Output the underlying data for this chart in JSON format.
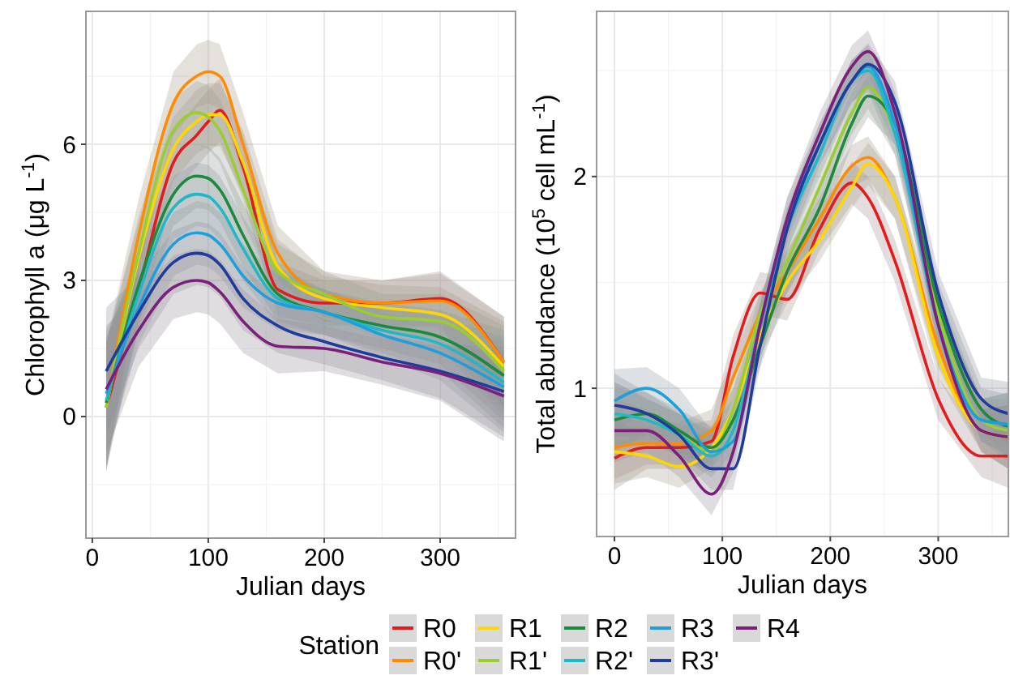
{
  "chart_data": [
    {
      "type": "line",
      "xlabel": "Julian days",
      "ylabel": "Chlorophyll a (μg L$^{-1}$)",
      "legend_title": "Station",
      "legend": "bottom",
      "grid": true,
      "xlim": [
        -5.5,
        365
      ],
      "ylim": [
        -2.68,
        8.93
      ],
      "xticks": [
        0,
        100,
        200,
        300
      ],
      "yticks": [
        0,
        3,
        6
      ],
      "x": [
        12,
        40,
        70,
        90,
        100,
        110,
        130,
        160,
        200,
        250,
        300,
        355
      ],
      "series": [
        {
          "name": "R0",
          "color": "#e41a1c",
          "values": [
            0.2,
            2.8,
            5.6,
            6.2,
            6.5,
            6.75,
            5.5,
            2.8,
            2.5,
            2.5,
            2.6,
            1.2
          ],
          "lower": [
            -1.2,
            2.0,
            4.9,
            5.5,
            5.8,
            6.05,
            4.8,
            2.2,
            2.0,
            2.0,
            2.0,
            0.2
          ],
          "upper": [
            1.6,
            3.6,
            6.3,
            6.9,
            7.2,
            7.45,
            6.2,
            3.4,
            3.0,
            3.0,
            3.2,
            2.2
          ]
        },
        {
          "name": "R0'",
          "color": "#ff8c00",
          "values": [
            0.2,
            4.0,
            6.9,
            7.5,
            7.6,
            7.5,
            6.0,
            3.6,
            2.7,
            2.5,
            2.55,
            1.2
          ],
          "lower": [
            -1.2,
            3.2,
            6.2,
            6.8,
            6.9,
            6.8,
            5.3,
            3.0,
            2.2,
            2.0,
            1.95,
            0.2
          ],
          "upper": [
            1.6,
            4.8,
            7.6,
            8.2,
            8.3,
            8.2,
            6.7,
            4.2,
            3.2,
            3.0,
            3.15,
            2.2
          ]
        },
        {
          "name": "R1",
          "color": "#ffd700",
          "values": [
            0.2,
            3.5,
            5.9,
            6.5,
            6.65,
            6.65,
            5.6,
            3.3,
            2.6,
            2.4,
            2.25,
            1.1
          ],
          "lower": [
            -1.2,
            2.7,
            5.2,
            5.8,
            5.95,
            5.95,
            4.9,
            2.7,
            2.1,
            1.9,
            1.65,
            0.1
          ],
          "upper": [
            1.6,
            4.3,
            6.6,
            7.2,
            7.35,
            7.35,
            6.3,
            3.9,
            3.1,
            2.9,
            2.85,
            2.1
          ]
        },
        {
          "name": "R1'",
          "color": "#9acd32",
          "values": [
            0.2,
            3.6,
            6.3,
            6.7,
            6.6,
            6.3,
            5.0,
            3.2,
            2.7,
            2.2,
            2.1,
            1.0
          ],
          "lower": [
            -1.2,
            2.8,
            5.6,
            6.0,
            5.9,
            5.6,
            4.3,
            2.6,
            2.2,
            1.7,
            1.5,
            0.0
          ],
          "upper": [
            1.6,
            4.4,
            7.0,
            7.4,
            7.3,
            7.0,
            5.7,
            3.8,
            3.2,
            2.7,
            2.7,
            2.0
          ]
        },
        {
          "name": "R2",
          "color": "#1b8a3c",
          "values": [
            0.3,
            2.9,
            4.9,
            5.3,
            5.25,
            5.0,
            4.0,
            2.7,
            2.3,
            2.0,
            1.75,
            0.9
          ],
          "lower": [
            -1.1,
            2.1,
            4.2,
            4.6,
            4.55,
            4.3,
            3.3,
            2.1,
            1.8,
            1.5,
            1.15,
            -0.1
          ],
          "upper": [
            1.7,
            3.7,
            5.6,
            6.0,
            5.95,
            5.7,
            4.7,
            3.3,
            2.8,
            2.5,
            2.35,
            1.9
          ]
        },
        {
          "name": "R2'",
          "color": "#20b8c8",
          "values": [
            0.35,
            2.7,
            4.6,
            4.9,
            4.85,
            4.6,
            3.7,
            2.6,
            2.3,
            1.9,
            1.6,
            0.75
          ],
          "lower": [
            -1.05,
            1.9,
            3.9,
            4.2,
            4.15,
            3.9,
            3.0,
            2.0,
            1.8,
            1.4,
            1.0,
            -0.25
          ],
          "upper": [
            1.75,
            3.5,
            5.3,
            5.6,
            5.55,
            5.3,
            4.4,
            3.2,
            2.8,
            2.4,
            2.2,
            1.75
          ]
        },
        {
          "name": "R3",
          "color": "#1e9fdc",
          "values": [
            0.5,
            2.4,
            3.8,
            4.05,
            4.0,
            3.8,
            3.1,
            2.5,
            2.3,
            1.8,
            1.4,
            0.65
          ],
          "lower": [
            -0.9,
            1.6,
            3.1,
            3.35,
            3.3,
            3.1,
            2.4,
            1.9,
            1.8,
            1.3,
            0.8,
            -0.35
          ],
          "upper": [
            1.9,
            3.2,
            4.5,
            4.75,
            4.7,
            4.5,
            3.8,
            3.1,
            2.8,
            2.3,
            2.0,
            1.65
          ]
        },
        {
          "name": "R3'",
          "color": "#1f3c9c",
          "values": [
            1.0,
            2.3,
            3.4,
            3.6,
            3.55,
            3.35,
            2.6,
            2.0,
            1.65,
            1.3,
            1.0,
            0.55
          ],
          "lower": [
            -0.4,
            1.5,
            2.7,
            2.9,
            2.85,
            2.65,
            1.9,
            1.4,
            1.15,
            0.8,
            0.4,
            -0.45
          ],
          "upper": [
            2.4,
            3.1,
            4.1,
            4.3,
            4.25,
            4.05,
            3.3,
            2.6,
            2.15,
            1.8,
            1.6,
            1.55
          ]
        },
        {
          "name": "R4",
          "color": "#7b1f7b",
          "values": [
            0.6,
            1.9,
            2.85,
            3.0,
            2.95,
            2.75,
            2.1,
            1.55,
            1.5,
            1.2,
            0.95,
            0.45
          ],
          "lower": [
            -0.8,
            1.1,
            2.15,
            2.3,
            2.25,
            2.05,
            1.4,
            0.95,
            1.0,
            0.7,
            0.35,
            -0.55
          ],
          "upper": [
            2.0,
            2.7,
            3.55,
            3.7,
            3.65,
            3.45,
            2.8,
            2.15,
            2.0,
            1.7,
            1.55,
            1.45
          ]
        }
      ]
    },
    {
      "type": "line",
      "xlabel": "Julian days",
      "ylabel": "Total abundance (10$^{5}$ cell mL$^{-1}$)",
      "grid": true,
      "legend": "bottom",
      "xlim": [
        -16.5,
        365
      ],
      "ylim": [
        0.3,
        2.78
      ],
      "xticks": [
        0,
        100,
        200,
        300
      ],
      "yticks": [
        1,
        2
      ],
      "x": [
        0,
        30,
        60,
        90,
        110,
        135,
        160,
        190,
        220,
        235,
        260,
        300,
        340,
        365
      ],
      "series": [
        {
          "name": "R0",
          "color": "#e41a1c",
          "values": [
            0.67,
            0.72,
            0.72,
            0.75,
            1.15,
            1.45,
            1.42,
            1.75,
            1.97,
            1.9,
            1.6,
            0.95,
            0.68,
            0.68
          ],
          "lower": [
            0.52,
            0.62,
            0.62,
            0.65,
            1.05,
            1.35,
            1.32,
            1.65,
            1.87,
            1.8,
            1.5,
            0.85,
            0.58,
            0.53
          ],
          "upper": [
            0.82,
            0.82,
            0.82,
            0.85,
            1.25,
            1.55,
            1.52,
            1.85,
            2.07,
            2.0,
            1.7,
            1.05,
            0.78,
            0.83
          ]
        },
        {
          "name": "R0'",
          "color": "#ff8c00",
          "values": [
            0.72,
            0.74,
            0.74,
            0.8,
            1.05,
            1.35,
            1.55,
            1.8,
            2.05,
            2.09,
            1.9,
            1.2,
            0.8,
            0.77
          ],
          "lower": [
            0.57,
            0.64,
            0.64,
            0.7,
            0.95,
            1.25,
            1.45,
            1.7,
            1.95,
            1.99,
            1.8,
            1.1,
            0.7,
            0.62
          ],
          "upper": [
            0.87,
            0.84,
            0.84,
            0.9,
            1.15,
            1.45,
            1.65,
            1.9,
            2.15,
            2.19,
            2.0,
            1.3,
            0.9,
            0.92
          ]
        },
        {
          "name": "R1",
          "color": "#ffd700",
          "values": [
            0.7,
            0.68,
            0.63,
            0.72,
            0.9,
            1.25,
            1.5,
            1.7,
            1.95,
            2.06,
            1.9,
            1.15,
            0.8,
            0.77
          ],
          "lower": [
            0.55,
            0.58,
            0.53,
            0.62,
            0.8,
            1.15,
            1.4,
            1.6,
            1.85,
            1.96,
            1.8,
            1.05,
            0.7,
            0.62
          ],
          "upper": [
            0.85,
            0.78,
            0.73,
            0.82,
            1.0,
            1.35,
            1.6,
            1.8,
            2.05,
            2.16,
            2.0,
            1.25,
            0.9,
            0.92
          ]
        },
        {
          "name": "R1'",
          "color": "#9acd32",
          "values": [
            0.88,
            0.85,
            0.78,
            0.7,
            0.9,
            1.35,
            1.6,
            1.95,
            2.3,
            2.42,
            2.2,
            1.35,
            0.85,
            0.8
          ],
          "lower": [
            0.73,
            0.75,
            0.68,
            0.6,
            0.8,
            1.25,
            1.5,
            1.85,
            2.2,
            2.32,
            2.1,
            1.25,
            0.75,
            0.65
          ],
          "upper": [
            1.03,
            0.95,
            0.88,
            0.8,
            1.0,
            1.45,
            1.7,
            2.05,
            2.4,
            2.52,
            2.3,
            1.45,
            0.95,
            0.95
          ]
        },
        {
          "name": "R2",
          "color": "#1b8a3c",
          "values": [
            0.85,
            0.88,
            0.8,
            0.72,
            0.85,
            1.2,
            1.55,
            1.85,
            2.25,
            2.38,
            2.25,
            1.4,
            0.9,
            0.82
          ],
          "lower": [
            0.7,
            0.78,
            0.7,
            0.62,
            0.75,
            1.1,
            1.45,
            1.75,
            2.15,
            2.28,
            2.15,
            1.3,
            0.8,
            0.67
          ],
          "upper": [
            1.0,
            0.98,
            0.9,
            0.82,
            0.95,
            1.3,
            1.65,
            1.95,
            2.35,
            2.48,
            2.35,
            1.5,
            1.0,
            0.97
          ]
        },
        {
          "name": "R2'",
          "color": "#20b8c8",
          "values": [
            0.88,
            0.85,
            0.78,
            0.68,
            0.8,
            1.3,
            1.75,
            2.1,
            2.45,
            2.5,
            2.2,
            1.3,
            0.85,
            0.83
          ],
          "lower": [
            0.73,
            0.75,
            0.68,
            0.58,
            0.7,
            1.2,
            1.65,
            2.0,
            2.35,
            2.4,
            2.1,
            1.2,
            0.75,
            0.68
          ],
          "upper": [
            1.03,
            0.95,
            0.88,
            0.78,
            0.9,
            1.4,
            1.85,
            2.2,
            2.55,
            2.6,
            2.3,
            1.4,
            0.95,
            0.98
          ]
        },
        {
          "name": "R3",
          "color": "#1e9fdc",
          "values": [
            0.94,
            1.0,
            0.9,
            0.7,
            0.75,
            1.3,
            1.8,
            2.15,
            2.45,
            2.52,
            2.25,
            1.3,
            0.85,
            0.83
          ],
          "lower": [
            0.79,
            0.9,
            0.8,
            0.6,
            0.65,
            1.2,
            1.7,
            2.05,
            2.35,
            2.42,
            2.15,
            1.2,
            0.75,
            0.68
          ],
          "upper": [
            1.09,
            1.1,
            1.0,
            0.8,
            0.85,
            1.4,
            1.9,
            2.25,
            2.55,
            2.62,
            2.35,
            1.4,
            0.95,
            0.98
          ]
        },
        {
          "name": "R3'",
          "color": "#1f3c9c",
          "values": [
            0.92,
            0.88,
            0.78,
            0.62,
            0.62,
            1.2,
            1.75,
            2.15,
            2.45,
            2.53,
            2.35,
            1.45,
            0.95,
            0.88
          ],
          "lower": [
            0.77,
            0.78,
            0.68,
            0.52,
            0.52,
            1.1,
            1.65,
            2.05,
            2.35,
            2.43,
            2.25,
            1.35,
            0.85,
            0.73
          ],
          "upper": [
            1.07,
            0.98,
            0.88,
            0.72,
            0.72,
            1.3,
            1.85,
            2.25,
            2.55,
            2.63,
            2.45,
            1.55,
            1.05,
            1.03
          ]
        },
        {
          "name": "R4",
          "color": "#7b1f7b",
          "values": [
            0.8,
            0.8,
            0.68,
            0.5,
            0.7,
            1.3,
            1.8,
            2.2,
            2.52,
            2.59,
            2.3,
            1.3,
            0.8,
            0.77
          ],
          "lower": [
            0.65,
            0.7,
            0.58,
            0.4,
            0.6,
            1.2,
            1.7,
            2.1,
            2.42,
            2.49,
            2.2,
            1.2,
            0.7,
            0.62
          ],
          "upper": [
            0.95,
            0.9,
            0.78,
            0.6,
            0.8,
            1.4,
            1.9,
            2.3,
            2.62,
            2.69,
            2.4,
            1.4,
            0.9,
            0.92
          ]
        }
      ]
    }
  ]
}
